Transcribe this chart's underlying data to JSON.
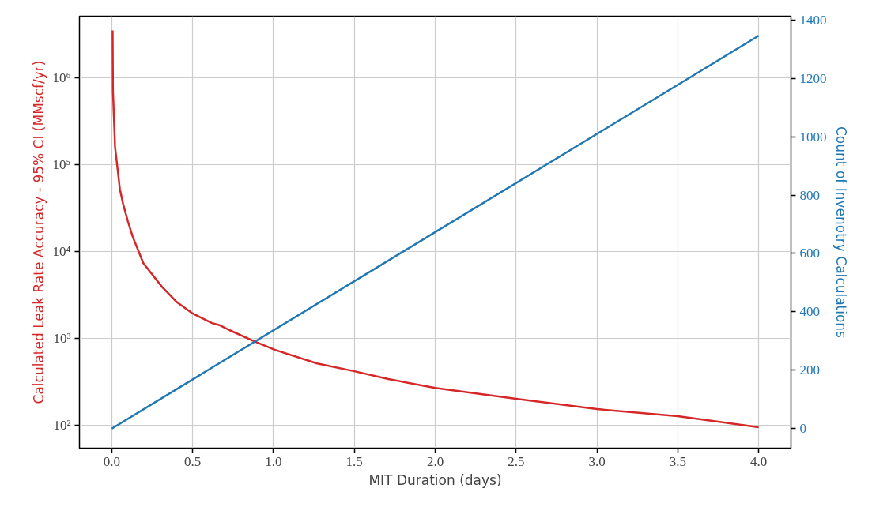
{
  "chart_data": {
    "type": "line",
    "xlabel": "MIT Duration (days)",
    "ylabel": "Calculated Leak Rate Accuracy - 95% CI (MMscf/yr)",
    "y2label": "Count of Invenotry Calculations",
    "xlim": [
      -0.2,
      4.2
    ],
    "xticks": [
      {
        "value": 0,
        "label": "0.0"
      },
      {
        "value": 0.5,
        "label": "0.5"
      },
      {
        "value": 1,
        "label": "1.0"
      },
      {
        "value": 1.5,
        "label": "1.5"
      },
      {
        "value": 2,
        "label": "2.0"
      },
      {
        "value": 2.5,
        "label": "2.5"
      },
      {
        "value": 3,
        "label": "3.0"
      },
      {
        "value": 3.5,
        "label": "3.5"
      },
      {
        "value": 4,
        "label": "4.0"
      }
    ],
    "ylim": [
      54,
      5100000
    ],
    "yticks": [
      {
        "value": 100,
        "label": "10²"
      },
      {
        "value": 1000,
        "label": "10³"
      },
      {
        "value": 10000,
        "label": "10⁴"
      },
      {
        "value": 100000,
        "label": "10⁵"
      },
      {
        "value": 1000000,
        "label": "10⁶"
      }
    ],
    "y2lim": [
      -67,
      1413
    ],
    "y2ticks": [
      0,
      200,
      400,
      600,
      800,
      1000,
      1200,
      1400
    ],
    "log": "y",
    "grid": true,
    "line_style": "solid",
    "marker": "none",
    "series": [
      {
        "color": "#d62728",
        "x": [
          0.005,
          0.007,
          0.01,
          0.02,
          0.05,
          0.07,
          0.1,
          0.13,
          0.195,
          0.31,
          0.405,
          0.5,
          0.62,
          0.67,
          0.73,
          0.88,
          1.01,
          1.27,
          1.5,
          1.71,
          2.0,
          2.5,
          3.0,
          3.5,
          4.0
        ],
        "values": [
          3500000,
          700000,
          510000,
          160000,
          52000,
          35000,
          22000,
          14600,
          7300,
          3900,
          2570,
          1920,
          1490,
          1400,
          1230,
          920,
          730,
          510,
          415,
          337,
          267,
          200,
          152,
          126,
          94
        ]
      },
      {
        "color": "#1f77b4",
        "axis": "y2",
        "x": [
          0,
          0.62,
          4.0
        ],
        "values": [
          0,
          209,
          1346
        ]
      }
    ]
  }
}
